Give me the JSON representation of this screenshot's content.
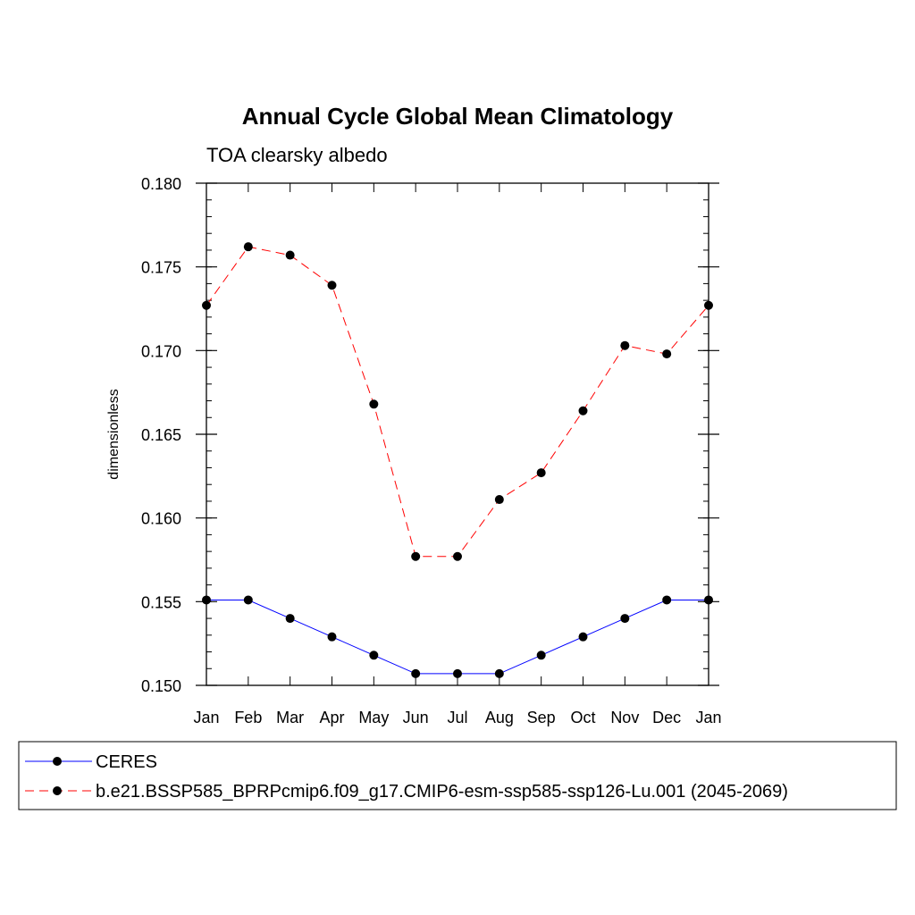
{
  "chart_data": {
    "type": "line",
    "title": "Annual Cycle Global Mean Climatology",
    "subtitle": "TOA clearsky albedo",
    "xlabel": "",
    "ylabel": "dimensionless",
    "categories": [
      "Jan",
      "Feb",
      "Mar",
      "Apr",
      "May",
      "Jun",
      "Jul",
      "Aug",
      "Sep",
      "Oct",
      "Nov",
      "Dec",
      "Jan"
    ],
    "ylim": [
      0.15,
      0.18
    ],
    "yticks": [
      "0.150",
      "0.155",
      "0.160",
      "0.165",
      "0.170",
      "0.175",
      "0.180"
    ],
    "ytick_values": [
      0.15,
      0.155,
      0.16,
      0.165,
      0.17,
      0.175,
      0.18
    ],
    "y_minor_step": 0.001,
    "series": [
      {
        "name": "CERES",
        "color": "#0000ff",
        "dash": "solid",
        "values": [
          0.1551,
          0.1551,
          0.154,
          0.1529,
          0.1518,
          0.1507,
          0.1507,
          0.1507,
          0.1518,
          0.1529,
          0.154,
          0.1551,
          0.1551
        ]
      },
      {
        "name": "b.e21.BSSP585_BPRPcmip6.f09_g17.CMIP6-esm-ssp585-ssp126-Lu.001 (2045-2069)",
        "color": "#ff0000",
        "dash": "dashed",
        "values": [
          0.1727,
          0.1762,
          0.1757,
          0.1739,
          0.1668,
          0.1577,
          0.1577,
          0.1611,
          0.1627,
          0.1664,
          0.1703,
          0.1698,
          0.1727
        ]
      }
    ]
  }
}
